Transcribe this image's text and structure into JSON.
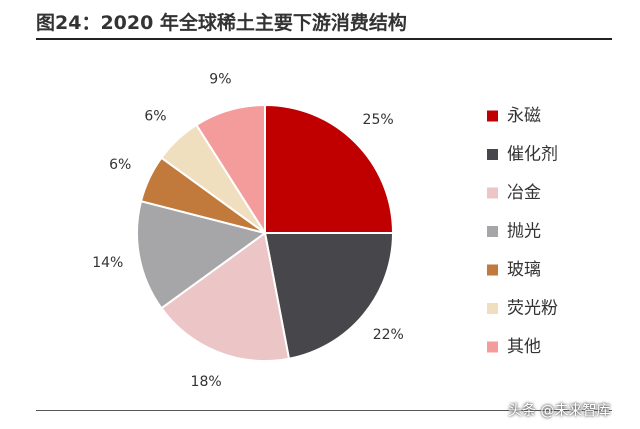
{
  "header": {
    "title": "图24：2020 年全球稀土主要下游消费结构"
  },
  "chart_data": {
    "type": "pie",
    "title": "图24：2020 年全球稀土主要下游消费结构",
    "legend_position": "right",
    "slices": [
      {
        "name": "永磁",
        "value": 25,
        "label": "25%",
        "color": "#c00000"
      },
      {
        "name": "催化剂",
        "value": 22,
        "label": "22%",
        "color": "#47474b"
      },
      {
        "name": "冶金",
        "value": 18,
        "label": "18%",
        "color": "#ecc5c6"
      },
      {
        "name": "抛光",
        "value": 14,
        "label": "14%",
        "color": "#a6a6a8"
      },
      {
        "name": "玻璃",
        "value": 6,
        "label": "6%",
        "color": "#c27a3c"
      },
      {
        "name": "荧光粉",
        "value": 6,
        "label": "6%",
        "color": "#efdfbf"
      },
      {
        "name": "其他",
        "value": 9,
        "label": "9%",
        "color": "#f49c9c"
      }
    ]
  },
  "watermark": {
    "text": "头条 @未来智库"
  }
}
